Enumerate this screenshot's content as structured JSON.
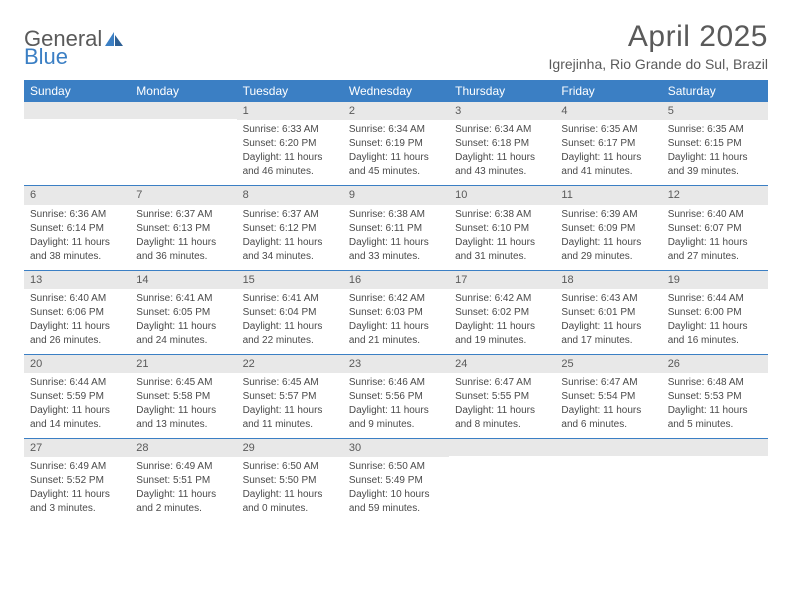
{
  "logo": {
    "text1": "General",
    "text2": "Blue"
  },
  "title": "April 2025",
  "location": "Igrejinha, Rio Grande do Sul, Brazil",
  "colors": {
    "header_bg": "#3b7fc4",
    "header_text": "#ffffff",
    "daynum_bg": "#e8e8e8",
    "text": "#5a5a5a",
    "body_text": "#4a4a4a",
    "rule": "#3b7fc4",
    "page_bg": "#ffffff"
  },
  "typography": {
    "title_fontsize": 30,
    "location_fontsize": 14,
    "dayheader_fontsize": 12,
    "daynum_fontsize": 11,
    "body_fontsize": 10,
    "font_family": "Arial"
  },
  "day_headers": [
    "Sunday",
    "Monday",
    "Tuesday",
    "Wednesday",
    "Thursday",
    "Friday",
    "Saturday"
  ],
  "weeks": [
    [
      null,
      null,
      {
        "n": "1",
        "sr": "Sunrise: 6:33 AM",
        "ss": "Sunset: 6:20 PM",
        "dl1": "Daylight: 11 hours",
        "dl2": "and 46 minutes."
      },
      {
        "n": "2",
        "sr": "Sunrise: 6:34 AM",
        "ss": "Sunset: 6:19 PM",
        "dl1": "Daylight: 11 hours",
        "dl2": "and 45 minutes."
      },
      {
        "n": "3",
        "sr": "Sunrise: 6:34 AM",
        "ss": "Sunset: 6:18 PM",
        "dl1": "Daylight: 11 hours",
        "dl2": "and 43 minutes."
      },
      {
        "n": "4",
        "sr": "Sunrise: 6:35 AM",
        "ss": "Sunset: 6:17 PM",
        "dl1": "Daylight: 11 hours",
        "dl2": "and 41 minutes."
      },
      {
        "n": "5",
        "sr": "Sunrise: 6:35 AM",
        "ss": "Sunset: 6:15 PM",
        "dl1": "Daylight: 11 hours",
        "dl2": "and 39 minutes."
      }
    ],
    [
      {
        "n": "6",
        "sr": "Sunrise: 6:36 AM",
        "ss": "Sunset: 6:14 PM",
        "dl1": "Daylight: 11 hours",
        "dl2": "and 38 minutes."
      },
      {
        "n": "7",
        "sr": "Sunrise: 6:37 AM",
        "ss": "Sunset: 6:13 PM",
        "dl1": "Daylight: 11 hours",
        "dl2": "and 36 minutes."
      },
      {
        "n": "8",
        "sr": "Sunrise: 6:37 AM",
        "ss": "Sunset: 6:12 PM",
        "dl1": "Daylight: 11 hours",
        "dl2": "and 34 minutes."
      },
      {
        "n": "9",
        "sr": "Sunrise: 6:38 AM",
        "ss": "Sunset: 6:11 PM",
        "dl1": "Daylight: 11 hours",
        "dl2": "and 33 minutes."
      },
      {
        "n": "10",
        "sr": "Sunrise: 6:38 AM",
        "ss": "Sunset: 6:10 PM",
        "dl1": "Daylight: 11 hours",
        "dl2": "and 31 minutes."
      },
      {
        "n": "11",
        "sr": "Sunrise: 6:39 AM",
        "ss": "Sunset: 6:09 PM",
        "dl1": "Daylight: 11 hours",
        "dl2": "and 29 minutes."
      },
      {
        "n": "12",
        "sr": "Sunrise: 6:40 AM",
        "ss": "Sunset: 6:07 PM",
        "dl1": "Daylight: 11 hours",
        "dl2": "and 27 minutes."
      }
    ],
    [
      {
        "n": "13",
        "sr": "Sunrise: 6:40 AM",
        "ss": "Sunset: 6:06 PM",
        "dl1": "Daylight: 11 hours",
        "dl2": "and 26 minutes."
      },
      {
        "n": "14",
        "sr": "Sunrise: 6:41 AM",
        "ss": "Sunset: 6:05 PM",
        "dl1": "Daylight: 11 hours",
        "dl2": "and 24 minutes."
      },
      {
        "n": "15",
        "sr": "Sunrise: 6:41 AM",
        "ss": "Sunset: 6:04 PM",
        "dl1": "Daylight: 11 hours",
        "dl2": "and 22 minutes."
      },
      {
        "n": "16",
        "sr": "Sunrise: 6:42 AM",
        "ss": "Sunset: 6:03 PM",
        "dl1": "Daylight: 11 hours",
        "dl2": "and 21 minutes."
      },
      {
        "n": "17",
        "sr": "Sunrise: 6:42 AM",
        "ss": "Sunset: 6:02 PM",
        "dl1": "Daylight: 11 hours",
        "dl2": "and 19 minutes."
      },
      {
        "n": "18",
        "sr": "Sunrise: 6:43 AM",
        "ss": "Sunset: 6:01 PM",
        "dl1": "Daylight: 11 hours",
        "dl2": "and 17 minutes."
      },
      {
        "n": "19",
        "sr": "Sunrise: 6:44 AM",
        "ss": "Sunset: 6:00 PM",
        "dl1": "Daylight: 11 hours",
        "dl2": "and 16 minutes."
      }
    ],
    [
      {
        "n": "20",
        "sr": "Sunrise: 6:44 AM",
        "ss": "Sunset: 5:59 PM",
        "dl1": "Daylight: 11 hours",
        "dl2": "and 14 minutes."
      },
      {
        "n": "21",
        "sr": "Sunrise: 6:45 AM",
        "ss": "Sunset: 5:58 PM",
        "dl1": "Daylight: 11 hours",
        "dl2": "and 13 minutes."
      },
      {
        "n": "22",
        "sr": "Sunrise: 6:45 AM",
        "ss": "Sunset: 5:57 PM",
        "dl1": "Daylight: 11 hours",
        "dl2": "and 11 minutes."
      },
      {
        "n": "23",
        "sr": "Sunrise: 6:46 AM",
        "ss": "Sunset: 5:56 PM",
        "dl1": "Daylight: 11 hours",
        "dl2": "and 9 minutes."
      },
      {
        "n": "24",
        "sr": "Sunrise: 6:47 AM",
        "ss": "Sunset: 5:55 PM",
        "dl1": "Daylight: 11 hours",
        "dl2": "and 8 minutes."
      },
      {
        "n": "25",
        "sr": "Sunrise: 6:47 AM",
        "ss": "Sunset: 5:54 PM",
        "dl1": "Daylight: 11 hours",
        "dl2": "and 6 minutes."
      },
      {
        "n": "26",
        "sr": "Sunrise: 6:48 AM",
        "ss": "Sunset: 5:53 PM",
        "dl1": "Daylight: 11 hours",
        "dl2": "and 5 minutes."
      }
    ],
    [
      {
        "n": "27",
        "sr": "Sunrise: 6:49 AM",
        "ss": "Sunset: 5:52 PM",
        "dl1": "Daylight: 11 hours",
        "dl2": "and 3 minutes."
      },
      {
        "n": "28",
        "sr": "Sunrise: 6:49 AM",
        "ss": "Sunset: 5:51 PM",
        "dl1": "Daylight: 11 hours",
        "dl2": "and 2 minutes."
      },
      {
        "n": "29",
        "sr": "Sunrise: 6:50 AM",
        "ss": "Sunset: 5:50 PM",
        "dl1": "Daylight: 11 hours",
        "dl2": "and 0 minutes."
      },
      {
        "n": "30",
        "sr": "Sunrise: 6:50 AM",
        "ss": "Sunset: 5:49 PM",
        "dl1": "Daylight: 10 hours",
        "dl2": "and 59 minutes."
      },
      null,
      null,
      null
    ]
  ]
}
